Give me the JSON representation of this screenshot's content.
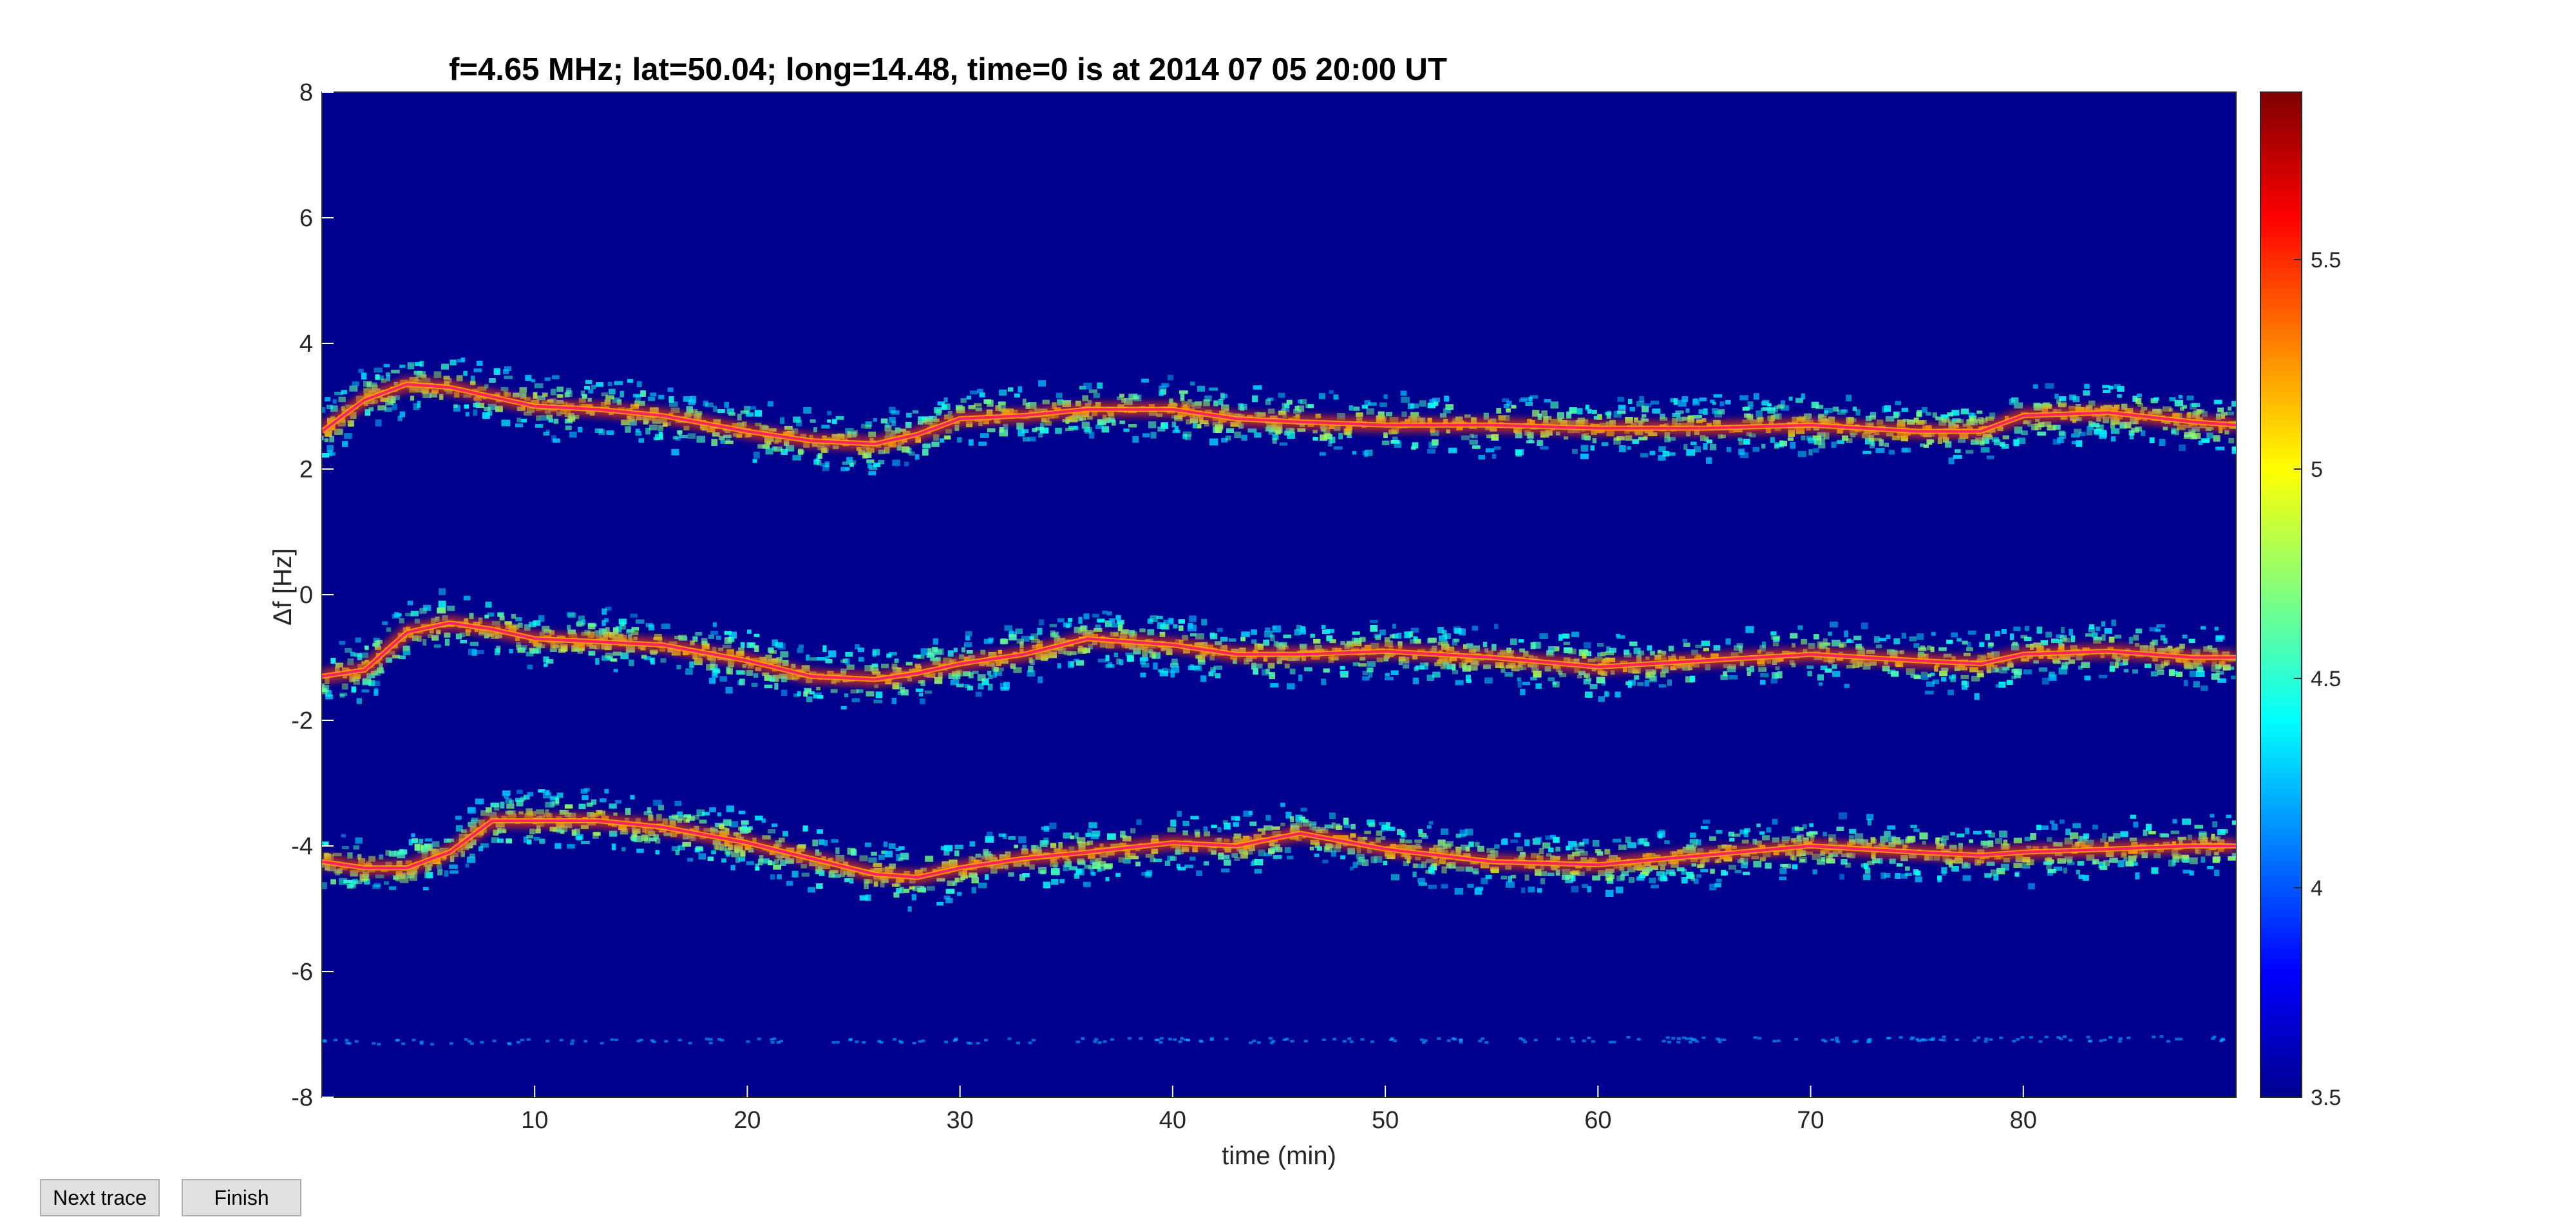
{
  "figure": {
    "title": "f=4.65 MHz;  lat=50.04; long=14.48, time=0 is at 2014 07 05 20:00 UT"
  },
  "chart_data": {
    "type": "heatmap",
    "title": "f=4.65 MHz;  lat=50.04; long=14.48, time=0 is at 2014 07 05 20:00 UT",
    "xlabel": "time (min)",
    "ylabel": "Δf [Hz]",
    "xlim": [
      0,
      90
    ],
    "ylim": [
      -8,
      8
    ],
    "x_ticks": [
      10,
      20,
      30,
      40,
      50,
      60,
      70,
      80
    ],
    "x_tick_labels": [
      "10",
      "20",
      "30",
      "40",
      "50",
      "60",
      "70",
      "80"
    ],
    "y_ticks": [
      8,
      6,
      4,
      2,
      0,
      -2,
      -4,
      -6,
      -8
    ],
    "y_tick_labels": [
      "8",
      "6",
      "4",
      "2",
      "0",
      "-2",
      "-4",
      "-6",
      "-8"
    ],
    "colorbar": {
      "colormap": "jet",
      "clim": [
        3.5,
        5.9
      ],
      "ticks": [
        3.5,
        4,
        4.5,
        5,
        5.5
      ],
      "tick_labels": [
        "3.5",
        "4",
        "4.5",
        "5",
        "5.5"
      ]
    },
    "background_color": "#00008f",
    "grid": false,
    "trace_color": "#ff2060",
    "series": [
      {
        "x": [
          0,
          2,
          4,
          6,
          8,
          10,
          13,
          16,
          20,
          23,
          26,
          28,
          30,
          33,
          36,
          40,
          43,
          46,
          50,
          55,
          60,
          65,
          70,
          75,
          78,
          80,
          84,
          88,
          90
        ],
        "y": [
          2.6,
          3.1,
          3.35,
          3.3,
          3.15,
          3.0,
          2.95,
          2.85,
          2.6,
          2.45,
          2.4,
          2.55,
          2.8,
          2.85,
          2.95,
          2.95,
          2.8,
          2.75,
          2.7,
          2.7,
          2.65,
          2.65,
          2.7,
          2.6,
          2.6,
          2.85,
          2.9,
          2.75,
          2.7
        ]
      },
      {
        "x": [
          0,
          2,
          4,
          6,
          8,
          10,
          13,
          16,
          20,
          23,
          26,
          28,
          30,
          33,
          36,
          40,
          43,
          46,
          50,
          55,
          60,
          65,
          70,
          75,
          78,
          80,
          84,
          88,
          90
        ],
        "y": [
          -1.3,
          -1.2,
          -0.6,
          -0.45,
          -0.55,
          -0.7,
          -0.75,
          -0.8,
          -1.05,
          -1.3,
          -1.35,
          -1.25,
          -1.1,
          -0.95,
          -0.7,
          -0.8,
          -0.95,
          -0.95,
          -0.9,
          -1.0,
          -1.15,
          -1.05,
          -0.95,
          -1.05,
          -1.1,
          -0.95,
          -0.9,
          -1.0,
          -1.0
        ]
      },
      {
        "x": [
          0,
          2,
          4,
          6,
          8,
          10,
          13,
          16,
          20,
          23,
          26,
          28,
          30,
          33,
          36,
          40,
          43,
          46,
          50,
          55,
          60,
          65,
          70,
          75,
          78,
          80,
          84,
          88,
          90
        ],
        "y": [
          -4.25,
          -4.35,
          -4.35,
          -4.1,
          -3.6,
          -3.6,
          -3.6,
          -3.7,
          -3.95,
          -4.2,
          -4.45,
          -4.5,
          -4.35,
          -4.2,
          -4.1,
          -3.95,
          -4.0,
          -3.8,
          -4.05,
          -4.25,
          -4.3,
          -4.15,
          -4.0,
          -4.1,
          -4.15,
          -4.1,
          -4.05,
          -4.0,
          -4.0
        ]
      },
      {
        "x": [
          0,
          90
        ],
        "y": [
          -7.1,
          -7.05
        ]
      }
    ]
  },
  "buttons": {
    "next_trace": "Next trace",
    "finish": "Finish"
  }
}
